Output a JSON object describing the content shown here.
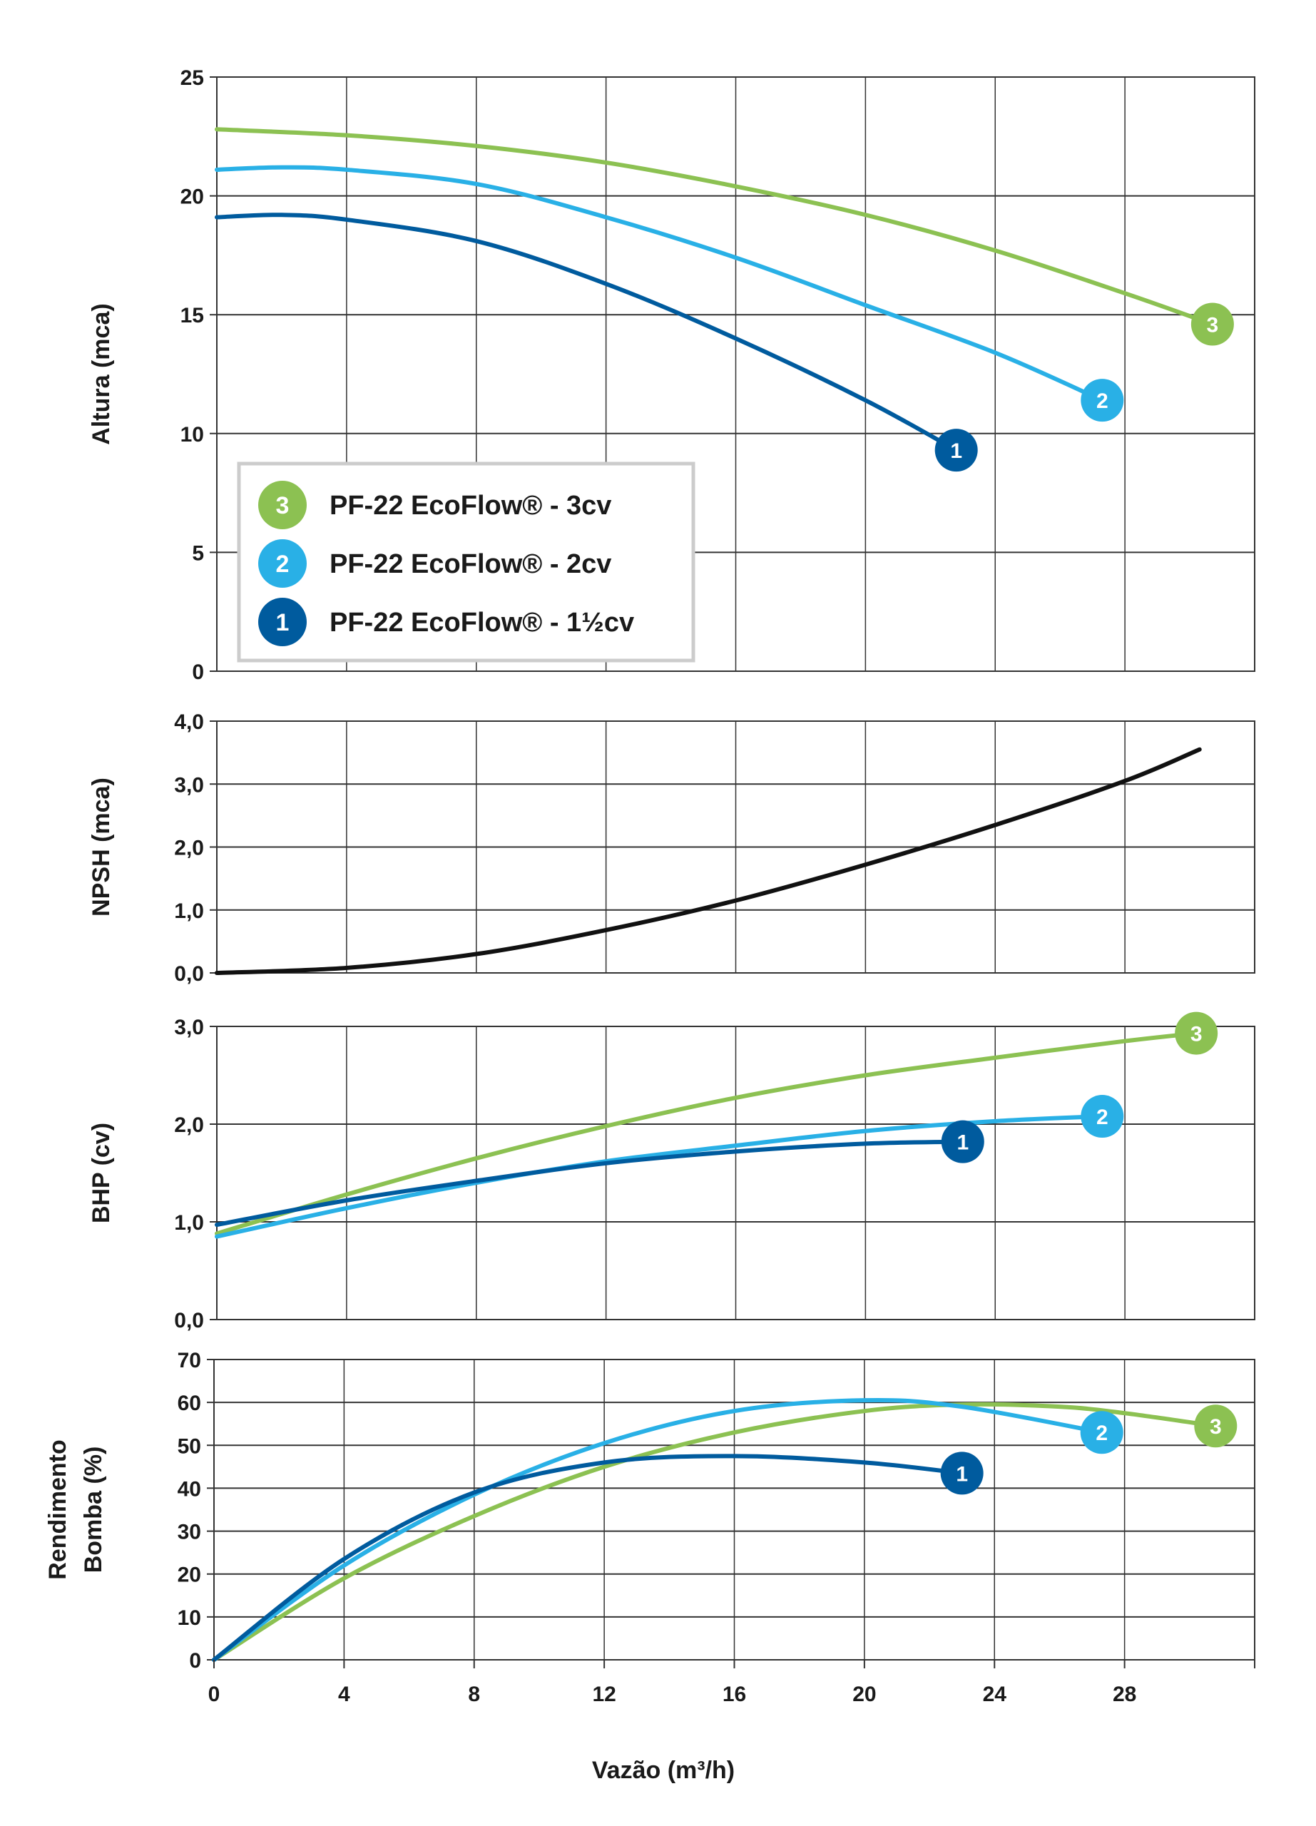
{
  "colors": {
    "s3": "#8cc152",
    "s2": "#29b0e6",
    "s1": "#005b9e",
    "npsh": "#111111",
    "grid": "#222222"
  },
  "legend": [
    {
      "marker": "3",
      "label": "PF-22 EcoFlow® - 3cv",
      "color": "#8cc152"
    },
    {
      "marker": "2",
      "label": "PF-22 EcoFlow® - 2cv",
      "color": "#29b0e6"
    },
    {
      "marker": "1",
      "label": "PF-22 EcoFlow® - 1½cv",
      "color": "#005b9e"
    }
  ],
  "chart_data": [
    {
      "type": "line",
      "ylabel": "Altura (mca)",
      "ylim": [
        0,
        25
      ],
      "yticks": [
        "0",
        "5",
        "10",
        "15",
        "20",
        "25"
      ],
      "xlim": [
        0,
        32
      ],
      "grid": true,
      "legend_position": "bottom-left",
      "series": [
        {
          "name": "3",
          "color": "#8cc152",
          "x": [
            0,
            4,
            8,
            12,
            16,
            20,
            24,
            28,
            30.7
          ],
          "y": [
            22.8,
            22.55,
            22.1,
            21.4,
            20.4,
            19.2,
            17.7,
            15.9,
            14.6
          ]
        },
        {
          "name": "2",
          "color": "#29b0e6",
          "x": [
            0,
            2,
            4,
            8,
            12,
            16,
            20,
            24,
            27.3
          ],
          "y": [
            21.1,
            21.2,
            21.1,
            20.5,
            19.1,
            17.4,
            15.4,
            13.4,
            11.4
          ]
        },
        {
          "name": "1",
          "color": "#005b9e",
          "x": [
            0,
            2,
            4,
            8,
            12,
            16,
            20,
            22.8
          ],
          "y": [
            19.1,
            19.2,
            19.0,
            18.1,
            16.3,
            14.0,
            11.4,
            9.3
          ]
        }
      ]
    },
    {
      "type": "line",
      "ylabel": "NPSH (mca)",
      "ylim": [
        0,
        4
      ],
      "yticks": [
        "0,0",
        "1,0",
        "2,0",
        "3,0",
        "4,0"
      ],
      "xlim": [
        0,
        32
      ],
      "grid": true,
      "series": [
        {
          "name": "NPSH",
          "color": "#111111",
          "x": [
            0,
            4,
            8,
            12,
            16,
            20,
            24,
            28,
            30.3
          ],
          "y": [
            0,
            0.08,
            0.3,
            0.68,
            1.15,
            1.72,
            2.35,
            3.05,
            3.55
          ]
        }
      ]
    },
    {
      "type": "line",
      "ylabel": "BHP (cv)",
      "ylim": [
        0,
        3
      ],
      "yticks": [
        "0,0",
        "1,0",
        "2,0",
        "3,0"
      ],
      "xlim": [
        0,
        32
      ],
      "grid": true,
      "series": [
        {
          "name": "3",
          "color": "#8cc152",
          "x": [
            0,
            4,
            8,
            12,
            16,
            20,
            24,
            28,
            30.2
          ],
          "y": [
            0.88,
            1.28,
            1.65,
            1.98,
            2.27,
            2.5,
            2.68,
            2.85,
            2.93
          ]
        },
        {
          "name": "2",
          "color": "#29b0e6",
          "x": [
            0,
            4,
            8,
            12,
            16,
            20,
            24,
            27.3
          ],
          "y": [
            0.85,
            1.14,
            1.4,
            1.62,
            1.78,
            1.93,
            2.03,
            2.08
          ]
        },
        {
          "name": "1",
          "color": "#005b9e",
          "x": [
            0,
            4,
            8,
            12,
            16,
            20,
            23
          ],
          "y": [
            0.97,
            1.22,
            1.42,
            1.6,
            1.72,
            1.8,
            1.82
          ]
        }
      ]
    },
    {
      "type": "line",
      "ylabel": "Rendimento Bomba (%)",
      "ylabel_lines": [
        "Rendimento",
        "Bomba (%)"
      ],
      "ylim": [
        0,
        70
      ],
      "yticks": [
        "0",
        "10",
        "20",
        "30",
        "40",
        "50",
        "60",
        "70"
      ],
      "xlim": [
        0,
        32
      ],
      "grid": true,
      "xlabel": "Vazão (m³/h)",
      "xticks": [
        "0",
        "4",
        "8",
        "12",
        "16",
        "20",
        "24",
        "28"
      ],
      "series": [
        {
          "name": "3",
          "color": "#8cc152",
          "x": [
            0,
            4,
            8,
            12,
            16,
            20,
            23,
            26,
            28,
            30.8
          ],
          "y": [
            0,
            19,
            33.5,
            45,
            53,
            58,
            59.5,
            59,
            57.5,
            54.5
          ]
        },
        {
          "name": "2",
          "color": "#29b0e6",
          "x": [
            0,
            4,
            8,
            12,
            16,
            20,
            23,
            27.3
          ],
          "y": [
            0,
            22,
            38.5,
            50.5,
            58,
            60.5,
            59,
            53
          ]
        },
        {
          "name": "1",
          "color": "#005b9e",
          "x": [
            0,
            4,
            8,
            12,
            16,
            20,
            23
          ],
          "y": [
            0,
            23.5,
            39,
            46,
            47.5,
            46,
            43.5
          ]
        }
      ]
    }
  ]
}
